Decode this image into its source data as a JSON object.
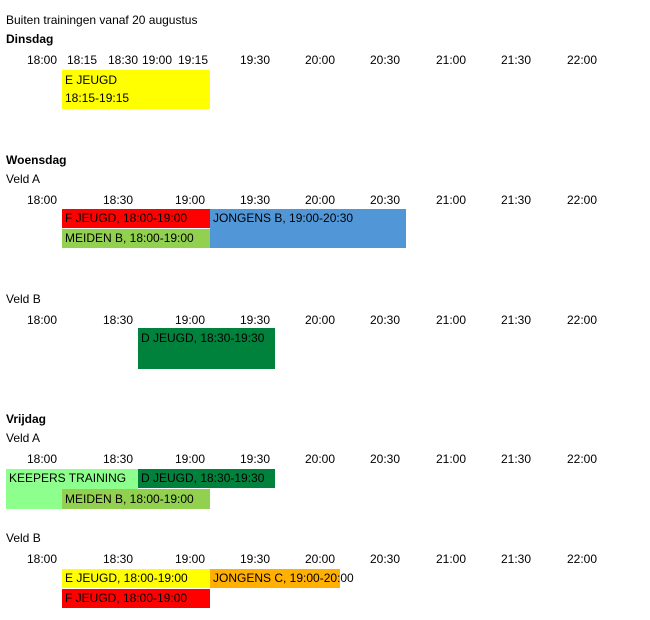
{
  "title": "Buiten trainingen vanaf 20 augustus",
  "colors": {
    "yellow": "#ffff00",
    "red": "#ff0000",
    "blue": "#5197d8",
    "light_green": "#92d050",
    "dark_green": "#00813c",
    "bright_green": "#8cff8c",
    "orange": "#ffb000"
  },
  "dinsdag": {
    "day": "Dinsdag",
    "ticks": [
      "18:00",
      "18:15",
      "18:30",
      "19:00",
      "19:15",
      "19:30",
      "20:00",
      "20:30",
      "21:00",
      "21:30",
      "22:00"
    ],
    "block_1": {
      "line1": "E JEUGD",
      "line2": "18:15-19:15",
      "color": "yellow"
    }
  },
  "woensdag": {
    "day": "Woensdag",
    "veld_a": {
      "label": "Veld A",
      "ticks": [
        "18:00",
        "18:30",
        "19:00",
        "19:30",
        "20:00",
        "20:30",
        "21:00",
        "21:30",
        "22:00"
      ],
      "blocks": [
        {
          "text": "F JEUGD, 18:00-19:00",
          "color": "red"
        },
        {
          "text": "JONGENS B, 19:00-20:30",
          "color": "blue"
        },
        {
          "text": "MEIDEN B, 18:00-19:00",
          "color": "light_green"
        }
      ]
    },
    "veld_b": {
      "label": "Veld B",
      "ticks": [
        "18:00",
        "18:30",
        "19:00",
        "19:30",
        "20:00",
        "20:30",
        "21:00",
        "21:30",
        "22:00"
      ],
      "blocks": [
        {
          "text": "D JEUGD, 18:30-19:30",
          "color": "dark_green"
        }
      ]
    }
  },
  "vrijdag": {
    "day": "Vrijdag",
    "veld_a": {
      "label": "Veld A",
      "ticks": [
        "18:00",
        "18:30",
        "19:00",
        "19:30",
        "20:00",
        "20:30",
        "21:00",
        "21:30",
        "22:00"
      ],
      "blocks": [
        {
          "text": "KEEPERS TRAINING",
          "color": "bright_green"
        },
        {
          "text": "D JEUGD, 18:30-19:30",
          "color": "dark_green"
        },
        {
          "text": "MEIDEN B, 18:00-19:00",
          "color": "light_green"
        }
      ]
    },
    "veld_b": {
      "label": "Veld B",
      "ticks": [
        "18:00",
        "18:30",
        "19:00",
        "19:30",
        "20:00",
        "20:30",
        "21:00",
        "21:30",
        "22:00"
      ],
      "blocks": [
        {
          "text": "E JEUGD, 18:00-19:00",
          "color": "yellow"
        },
        {
          "text": "JONGENS C, 19:00-20:00",
          "color": "orange"
        },
        {
          "text": "F JEUGD, 18:00-19:00",
          "color": "red"
        }
      ]
    }
  }
}
